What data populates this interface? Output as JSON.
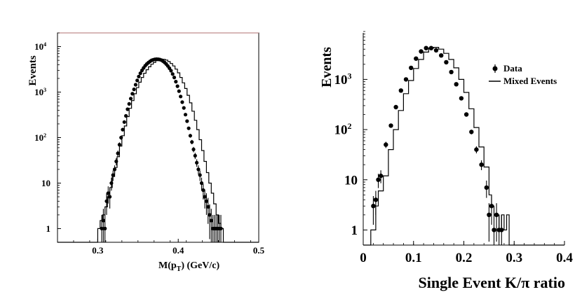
{
  "chart_data": [
    {
      "type": "scatter",
      "title": "",
      "xlabel": "M(p_T) (GeV/c)",
      "xlabel_main": "M(p",
      "xlabel_sub": "T",
      "xlabel_tail": ") (GeV/c)",
      "ylabel": "Events",
      "yscale": "log",
      "xlim": [
        0.25,
        0.5
      ],
      "ylim": [
        0.5,
        20000
      ],
      "x_ticks": [
        {
          "value": 0.3,
          "label": "0.3"
        },
        {
          "value": 0.4,
          "label": "0.4"
        },
        {
          "value": 0.5,
          "label": "0.5"
        }
      ],
      "y_ticks": [
        {
          "value": 1,
          "label": "1",
          "exp": ""
        },
        {
          "value": 10,
          "label": "10",
          "exp": ""
        },
        {
          "value": 100,
          "label": "10",
          "exp": "2"
        },
        {
          "value": 1000,
          "label": "10",
          "exp": "3"
        },
        {
          "value": 10000,
          "label": "10",
          "exp": "4"
        }
      ],
      "points_x": [
        0.305,
        0.307,
        0.309,
        0.311,
        0.313,
        0.315,
        0.317,
        0.319,
        0.321,
        0.323,
        0.325,
        0.327,
        0.329,
        0.331,
        0.333,
        0.335,
        0.337,
        0.339,
        0.341,
        0.343,
        0.345,
        0.347,
        0.349,
        0.351,
        0.353,
        0.355,
        0.357,
        0.359,
        0.361,
        0.363,
        0.365,
        0.367,
        0.369,
        0.371,
        0.373,
        0.375,
        0.377,
        0.379,
        0.381,
        0.383,
        0.385,
        0.387,
        0.389,
        0.391,
        0.393,
        0.395,
        0.397,
        0.399,
        0.401,
        0.403,
        0.405,
        0.407,
        0.409,
        0.411,
        0.413,
        0.415,
        0.417,
        0.419,
        0.421,
        0.423,
        0.425,
        0.427,
        0.429,
        0.431,
        0.433,
        0.435,
        0.437,
        0.439,
        0.441,
        0.443,
        0.445,
        0.447,
        0.449,
        0.451,
        0.453
      ],
      "points_y": [
        1.0,
        1.5,
        1.0,
        4.0,
        6.0,
        5.0,
        10.0,
        15.0,
        20.0,
        30.0,
        45.0,
        70.0,
        100.0,
        150.0,
        220.0,
        300.0,
        420.0,
        550.0,
        720.0,
        920.0,
        1150.0,
        1450.0,
        1800.0,
        2200.0,
        2600.0,
        3000.0,
        3400.0,
        3800.0,
        4150.0,
        4450.0,
        4750.0,
        5000.0,
        5150.0,
        5250.0,
        5300.0,
        5280.0,
        5200.0,
        5050.0,
        4800.0,
        4500.0,
        4150.0,
        3750.0,
        3350.0,
        2950.0,
        2500.0,
        2100.0,
        1700.0,
        1350.0,
        1050.0,
        800.0,
        600.0,
        450.0,
        320.0,
        230.0,
        160.0,
        110.0,
        80.0,
        55.0,
        40.0,
        28.0,
        20.0,
        15.0,
        10.0,
        7.0,
        5.0,
        4.0,
        3.0,
        2.0,
        1.5,
        1.0,
        1.0,
        1.0,
        1.0,
        1.0,
        1.0
      ],
      "hist_edges": [
        0.25,
        0.3,
        0.303,
        0.306,
        0.309,
        0.312,
        0.315,
        0.318,
        0.321,
        0.324,
        0.327,
        0.33,
        0.333,
        0.336,
        0.339,
        0.342,
        0.345,
        0.348,
        0.351,
        0.354,
        0.357,
        0.36,
        0.363,
        0.366,
        0.369,
        0.372,
        0.375,
        0.378,
        0.381,
        0.384,
        0.387,
        0.39,
        0.393,
        0.396,
        0.399,
        0.402,
        0.405,
        0.408,
        0.411,
        0.414,
        0.417,
        0.42,
        0.423,
        0.426,
        0.429,
        0.432,
        0.435,
        0.438,
        0.441,
        0.444,
        0.447,
        0.45,
        0.453,
        0.456,
        0.459,
        0.5
      ],
      "hist_values": [
        0.5,
        1,
        1.5,
        2,
        3,
        5,
        8,
        14,
        22,
        38,
        65,
        110,
        180,
        290,
        440,
        650,
        920,
        1250,
        1650,
        2100,
        2600,
        3100,
        3600,
        4100,
        4500,
        4900,
        5150,
        5300,
        5250,
        5050,
        4700,
        4250,
        3750,
        3200,
        2650,
        2100,
        1600,
        1200,
        850,
        580,
        380,
        240,
        150,
        90,
        52,
        30,
        17,
        10,
        6,
        3.5,
        2,
        1.3,
        1,
        0.5,
        0.5
      ]
    },
    {
      "type": "scatter",
      "title": "",
      "xlabel": "Single Event K/π ratio",
      "ylabel": "Events",
      "yscale": "log",
      "xlim": [
        0,
        0.4
      ],
      "ylim": [
        0.5,
        9000
      ],
      "x_ticks": [
        {
          "value": 0,
          "label": "0"
        },
        {
          "value": 0.1,
          "label": "0.1"
        },
        {
          "value": 0.2,
          "label": "0.2"
        },
        {
          "value": 0.3,
          "label": "0.3"
        },
        {
          "value": 0.4,
          "label": "0.4"
        }
      ],
      "y_ticks": [
        {
          "value": 1,
          "label": "1",
          "exp": ""
        },
        {
          "value": 10,
          "label": "10",
          "exp": ""
        },
        {
          "value": 100,
          "label": "10",
          "exp": "2"
        },
        {
          "value": 1000,
          "label": "10",
          "exp": "3"
        }
      ],
      "legend": [
        {
          "label": "Data",
          "marker": "point"
        },
        {
          "label": "Mixed Events",
          "marker": "line"
        }
      ],
      "points_x": [
        0.02,
        0.025,
        0.03,
        0.035,
        0.045,
        0.055,
        0.065,
        0.075,
        0.085,
        0.095,
        0.105,
        0.115,
        0.125,
        0.135,
        0.145,
        0.155,
        0.165,
        0.175,
        0.185,
        0.195,
        0.205,
        0.215,
        0.225,
        0.235,
        0.245,
        0.25,
        0.255,
        0.26,
        0.265,
        0.27,
        0.275
      ],
      "points_y": [
        3,
        4,
        10,
        12,
        50,
        120,
        280,
        600,
        1000,
        1700,
        2600,
        3600,
        4200,
        4200,
        3800,
        3000,
        2200,
        1400,
        800,
        420,
        200,
        90,
        40,
        20,
        7,
        2,
        3,
        1,
        2,
        1,
        1
      ],
      "hist_edges": [
        0.0,
        0.015,
        0.02,
        0.025,
        0.03,
        0.04,
        0.05,
        0.06,
        0.07,
        0.08,
        0.09,
        0.1,
        0.11,
        0.12,
        0.13,
        0.14,
        0.15,
        0.16,
        0.17,
        0.18,
        0.19,
        0.2,
        0.21,
        0.22,
        0.23,
        0.24,
        0.25,
        0.255,
        0.26,
        0.265,
        0.27,
        0.275,
        0.28,
        0.285,
        0.29,
        0.4
      ],
      "hist_values": [
        0.5,
        1,
        1,
        3,
        6,
        12,
        40,
        100,
        240,
        520,
        950,
        1650,
        2500,
        3500,
        4200,
        4350,
        4000,
        3300,
        2500,
        1700,
        1000,
        550,
        260,
        110,
        45,
        18,
        5,
        3,
        2,
        2,
        1,
        2,
        1,
        2,
        0.5
      ]
    }
  ]
}
